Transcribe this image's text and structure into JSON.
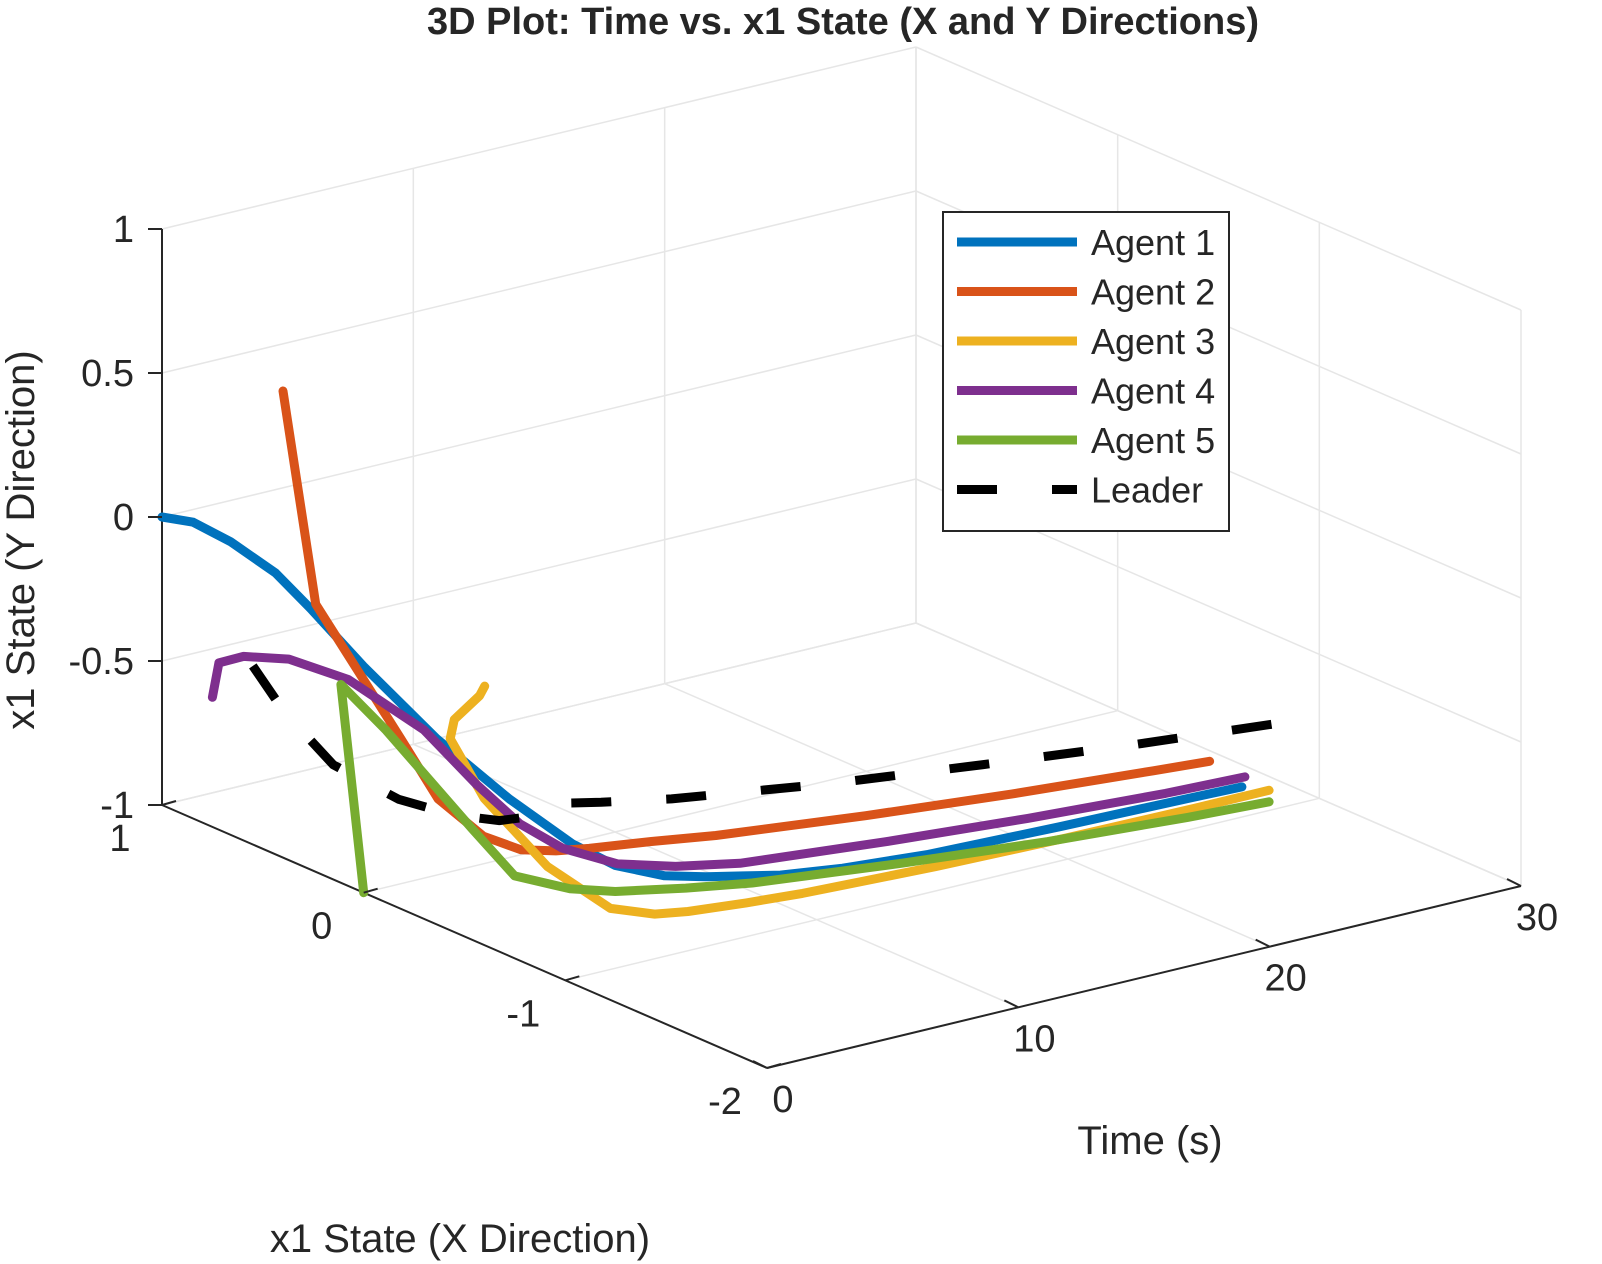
{
  "chart_data": {
    "type": "line",
    "projection": "3d",
    "title": "3D Plot: Time vs. x1 State (X and Y Directions)",
    "time_label": "Time (s)",
    "x_state_label": "x1 State (X Direction)",
    "y_state_label": "x1 State (Y Direction)",
    "time_range": [
      0,
      30
    ],
    "x_state_range": [
      -2,
      1
    ],
    "y_state_range": [
      -1,
      1
    ],
    "time_ticks": [
      "0",
      "10",
      "20",
      "30"
    ],
    "x_state_ticks": [
      "-2",
      "-1",
      "0",
      "1"
    ],
    "y_state_ticks": [
      "-1",
      "-0.5",
      "0",
      "0.5",
      "1"
    ],
    "grid": true,
    "legend_position": "top-right",
    "series": [
      {
        "name": "Agent 1",
        "color": "#0072BD",
        "style": "solid",
        "points": [
          [
            0,
            1,
            0
          ],
          [
            1,
            0.97,
            -0.03
          ],
          [
            2,
            0.91,
            -0.1
          ],
          [
            3,
            0.81,
            -0.2
          ],
          [
            3.5,
            0.7,
            -0.3
          ],
          [
            4,
            0.5,
            -0.45
          ],
          [
            4.5,
            0.2,
            -0.62
          ],
          [
            5,
            -0.1,
            -0.75
          ],
          [
            5.5,
            -0.35,
            -0.84
          ],
          [
            6,
            -0.5,
            -0.88
          ],
          [
            7,
            -0.62,
            -0.9
          ],
          [
            8,
            -0.7,
            -0.9
          ],
          [
            9,
            -0.76,
            -0.9
          ],
          [
            10,
            -0.82,
            -0.9
          ],
          [
            12,
            -0.88,
            -0.9
          ],
          [
            15,
            -0.93,
            -0.9
          ],
          [
            20,
            -0.96,
            -0.9
          ],
          [
            25,
            -0.98,
            -0.9
          ],
          [
            27,
            -0.99,
            -0.9
          ]
        ]
      },
      {
        "name": "Agent 2",
        "color": "#D95319",
        "style": "solid",
        "points": [
          [
            0,
            0.4,
            0.62
          ],
          [
            0.5,
            0.3,
            -0.1
          ],
          [
            1,
            0.15,
            -0.3
          ],
          [
            1.5,
            0,
            -0.5
          ],
          [
            2,
            -0.12,
            -0.68
          ],
          [
            3,
            -0.22,
            -0.8
          ],
          [
            4,
            -0.28,
            -0.85
          ],
          [
            5,
            -0.33,
            -0.86
          ],
          [
            6,
            -0.37,
            -0.86
          ],
          [
            8,
            -0.43,
            -0.86
          ],
          [
            10,
            -0.5,
            -0.86
          ],
          [
            15,
            -0.62,
            -0.86
          ],
          [
            20,
            -0.72,
            -0.86
          ],
          [
            25,
            -0.8,
            -0.86
          ],
          [
            27,
            -0.83,
            -0.86
          ]
        ]
      },
      {
        "name": "Agent 3",
        "color": "#EDB120",
        "style": "solid",
        "points": [
          [
            0,
            -0.6,
            -0.1
          ],
          [
            1,
            -0.45,
            -0.2
          ],
          [
            2,
            -0.2,
            -0.38
          ],
          [
            2.8,
            -0.08,
            -0.5
          ],
          [
            3.2,
            -0.2,
            -0.68
          ],
          [
            3.7,
            -0.45,
            -0.85
          ],
          [
            4.2,
            -0.7,
            -0.93
          ],
          [
            5,
            -0.82,
            -0.93
          ],
          [
            6,
            -0.86,
            -0.93
          ],
          [
            8,
            -0.9,
            -0.93
          ],
          [
            10,
            -0.93,
            -0.93
          ],
          [
            15,
            -0.97,
            -0.93
          ],
          [
            20,
            -0.99,
            -0.93
          ],
          [
            25,
            -1.0,
            -0.93
          ],
          [
            28,
            -1.0,
            -0.93
          ]
        ]
      },
      {
        "name": "Agent 4",
        "color": "#7E2F8E",
        "style": "solid",
        "points": [
          [
            0,
            0.75,
            -0.55
          ],
          [
            0.5,
            0.78,
            -0.45
          ],
          [
            1,
            0.72,
            -0.42
          ],
          [
            2,
            0.62,
            -0.42
          ],
          [
            3,
            0.45,
            -0.46
          ],
          [
            4,
            0.2,
            -0.58
          ],
          [
            4.5,
            0,
            -0.72
          ],
          [
            5,
            -0.15,
            -0.82
          ],
          [
            5.5,
            -0.3,
            -0.87
          ],
          [
            6.5,
            -0.45,
            -0.9
          ],
          [
            8,
            -0.55,
            -0.91
          ],
          [
            10,
            -0.62,
            -0.92
          ],
          [
            15,
            -0.72,
            -0.92
          ],
          [
            20,
            -0.8,
            -0.92
          ],
          [
            25,
            -0.86,
            -0.92
          ],
          [
            28,
            -0.88,
            -0.92
          ]
        ]
      },
      {
        "name": "Agent 5",
        "color": "#77AC30",
        "style": "solid",
        "points": [
          [
            0,
            0,
            -1.0
          ],
          [
            0.5,
            0.1,
            -0.8
          ],
          [
            1.5,
            0.3,
            -0.4
          ],
          [
            2.5,
            0.2,
            -0.55
          ],
          [
            3.5,
            -0.1,
            -0.82
          ],
          [
            4,
            -0.25,
            -0.95
          ],
          [
            5,
            -0.4,
            -0.97
          ],
          [
            6,
            -0.5,
            -0.97
          ],
          [
            8,
            -0.6,
            -0.97
          ],
          [
            10,
            -0.68,
            -0.97
          ],
          [
            15,
            -0.8,
            -0.97
          ],
          [
            20,
            -0.9,
            -0.97
          ],
          [
            25,
            -0.97,
            -0.97
          ],
          [
            28,
            -1.0,
            -0.97
          ]
        ]
      },
      {
        "name": "Leader",
        "color": "#000000",
        "style": "dashed",
        "points": [
          [
            0,
            0.55,
            -0.38
          ],
          [
            1,
            0.52,
            -0.55
          ],
          [
            2,
            0.4,
            -0.72
          ],
          [
            3,
            0.2,
            -0.8
          ],
          [
            4,
            0.05,
            -0.83
          ],
          [
            5,
            -0.05,
            -0.84
          ],
          [
            6,
            -0.1,
            -0.83
          ],
          [
            7,
            -0.12,
            -0.8
          ],
          [
            8,
            -0.18,
            -0.8
          ],
          [
            10,
            -0.28,
            -0.8
          ],
          [
            15,
            -0.45,
            -0.8
          ],
          [
            20,
            -0.58,
            -0.8
          ],
          [
            25,
            -0.7,
            -0.8
          ],
          [
            30,
            -0.8,
            -0.8
          ]
        ]
      }
    ]
  }
}
